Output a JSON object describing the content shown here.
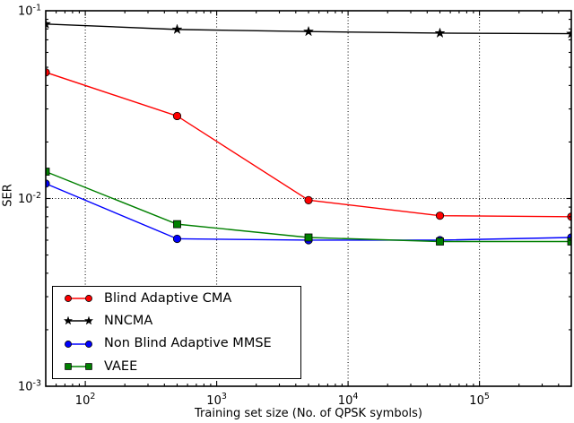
{
  "chart_data": {
    "type": "line",
    "title": "",
    "xlabel": "Training set size (No. of QPSK symbols)",
    "ylabel": "SER",
    "xscale": "log",
    "yscale": "log",
    "xlim": [
      50,
      500000
    ],
    "ylim": [
      0.001,
      0.1
    ],
    "x_ticks": [
      100,
      1000,
      10000,
      100000
    ],
    "y_ticks": [
      0.1,
      0.01,
      0.001
    ],
    "grid": {
      "style": "dotted",
      "color": "#000000",
      "on": "major"
    },
    "legend": {
      "position": "lower-left",
      "border_color": "#000000",
      "background": "#ffffff"
    },
    "x": [
      50,
      500,
      5000,
      50000,
      500000
    ],
    "series": [
      {
        "name": "Blind Adaptive CMA",
        "color": "#ff0000",
        "marker": "circle",
        "values": [
          0.047,
          0.0275,
          0.0098,
          0.0081,
          0.008
        ]
      },
      {
        "name": "NNCMA",
        "color": "#000000",
        "marker": "star",
        "values": [
          0.085,
          0.0795,
          0.0775,
          0.076,
          0.0755
        ]
      },
      {
        "name": "Non Blind Adaptive MMSE",
        "color": "#0000ff",
        "marker": "circle",
        "values": [
          0.012,
          0.0061,
          0.006,
          0.006,
          0.0062
        ]
      },
      {
        "name": "VAEE",
        "color": "#008000",
        "marker": "square",
        "values": [
          0.0139,
          0.0073,
          0.0062,
          0.0059,
          0.0059
        ]
      }
    ]
  }
}
